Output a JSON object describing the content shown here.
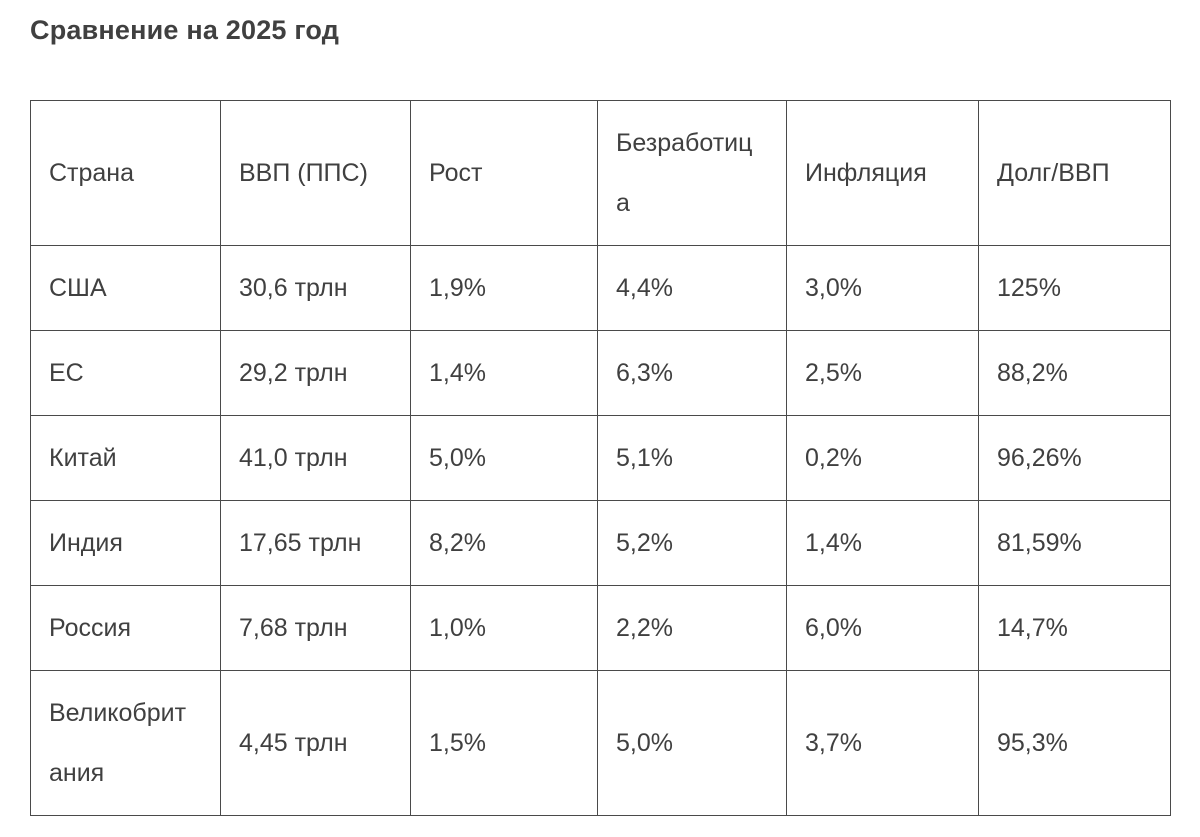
{
  "page": {
    "title": "Сравнение на 2025 год"
  },
  "colors": {
    "text": "#404040",
    "border": "#4a4a4a",
    "background": "#ffffff"
  },
  "table": {
    "columns": [
      "Страна",
      "ВВП (ППС)",
      "Рост",
      "Безработица",
      "Инфляция",
      "Долг/ВВП"
    ],
    "rows": [
      {
        "country": "США",
        "gdp_ppp": "30,6 трлн",
        "growth": "1,9%",
        "unemployment": "4,4%",
        "inflation": "3,0%",
        "debt_gdp": "125%"
      },
      {
        "country": "ЕС",
        "gdp_ppp": "29,2 трлн",
        "growth": "1,4%",
        "unemployment": "6,3%",
        "inflation": "2,5%",
        "debt_gdp": "88,2%"
      },
      {
        "country": "Китай",
        "gdp_ppp": "41,0 трлн",
        "growth": "5,0%",
        "unemployment": "5,1%",
        "inflation": "0,2%",
        "debt_gdp": "96,26%"
      },
      {
        "country": "Индия",
        "gdp_ppp": "17,65 трлн",
        "growth": "8,2%",
        "unemployment": "5,2%",
        "inflation": "1,4%",
        "debt_gdp": "81,59%"
      },
      {
        "country": "Россия",
        "gdp_ppp": "7,68 трлн",
        "growth": "1,0%",
        "unemployment": "2,2%",
        "inflation": "6,0%",
        "debt_gdp": "14,7%"
      },
      {
        "country": "Великобритания",
        "gdp_ppp": "4,45 трлн",
        "growth": "1,5%",
        "unemployment": "5,0%",
        "inflation": "3,7%",
        "debt_gdp": "95,3%"
      }
    ]
  }
}
